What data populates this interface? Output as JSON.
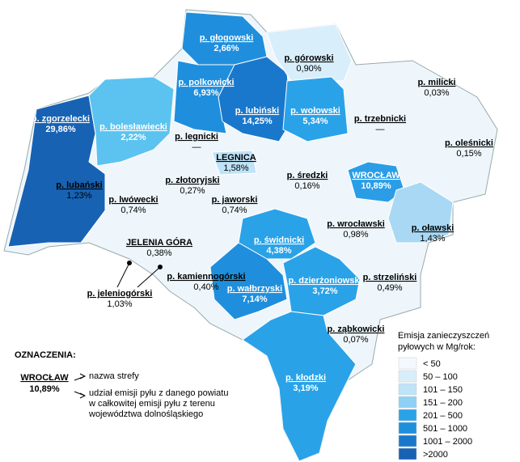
{
  "map": {
    "regions": [
      {
        "name": "p. zgorzelecki",
        "share": "29,86%",
        "color": "#1762b3",
        "text_color": "#ffffff"
      },
      {
        "name": "p. bolesławiecki",
        "share": "2,22%",
        "color": "#5cc3f0",
        "text_color": "#ffffff"
      },
      {
        "name": "p. głogowski",
        "share": "2,66%",
        "color": "#1f8fdd",
        "text_color": "#ffffff"
      },
      {
        "name": "p. polkowicki",
        "share": "6,93%",
        "color": "#1f8fdd",
        "text_color": "#ffffff"
      },
      {
        "name": "p. lubiński",
        "share": "14,25%",
        "color": "#1a78cc",
        "text_color": "#ffffff"
      },
      {
        "name": "p. górowski",
        "share": "0,90%",
        "color": "#d9eefb",
        "text_color": "#000000"
      },
      {
        "name": "p. wołowski",
        "share": "5,34%",
        "color": "#2aa2e8",
        "text_color": "#ffffff"
      },
      {
        "name": "p. milicki",
        "share": "0,03%",
        "color": "#eef6fc",
        "text_color": "#000000"
      },
      {
        "name": "p. trzebnicki",
        "share": "—",
        "color": "#eef6fc",
        "text_color": "#000000"
      },
      {
        "name": "p. oleśnicki",
        "share": "0,15%",
        "color": "#eef6fc",
        "text_color": "#000000"
      },
      {
        "name": "p. legnicki",
        "share": "—",
        "color": "#eef6fc",
        "text_color": "#000000"
      },
      {
        "name": "LEGNICA",
        "share": "1,58%",
        "color": "#bfe3f7",
        "text_color": "#000000"
      },
      {
        "name": "p. lubański",
        "share": "1,23%",
        "color": "#eef6fc",
        "text_color": "#000000"
      },
      {
        "name": "p. złotoryjski",
        "share": "0,27%",
        "color": "#eef6fc",
        "text_color": "#000000"
      },
      {
        "name": "p. lwówecki",
        "share": "0,74%",
        "color": "#eef6fc",
        "text_color": "#000000"
      },
      {
        "name": "p. jaworski",
        "share": "0,74%",
        "color": "#eef6fc",
        "text_color": "#000000"
      },
      {
        "name": "p. średzki",
        "share": "0,16%",
        "color": "#eef6fc",
        "text_color": "#000000"
      },
      {
        "name": "WROCŁAW",
        "share": "10,89%",
        "color": "#2a9de6",
        "text_color": "#ffffff"
      },
      {
        "name": "p. wrocławski",
        "share": "0,98%",
        "color": "#eef6fc",
        "text_color": "#000000"
      },
      {
        "name": "p. oławski",
        "share": "1,43%",
        "color": "#a8d8f4",
        "text_color": "#000000"
      },
      {
        "name": "JELENIA GÓRA",
        "share": "0,38%",
        "color": "#eef6fc",
        "text_color": "#000000"
      },
      {
        "name": "p. świdnicki",
        "share": "4,38%",
        "color": "#2aa2e8",
        "text_color": "#ffffff"
      },
      {
        "name": "p. jeleniogórski",
        "share": "1,03%",
        "color": "#eef6fc",
        "text_color": "#000000"
      },
      {
        "name": "p. kamiennogórski",
        "share": "0,40%",
        "color": "#eef6fc",
        "text_color": "#000000"
      },
      {
        "name": "p. wałbrzyski",
        "share": "7,14%",
        "color": "#1f8fdd",
        "text_color": "#ffffff"
      },
      {
        "name": "p. dzierżoniowski",
        "share": "3,72%",
        "color": "#2aa2e8",
        "text_color": "#ffffff"
      },
      {
        "name": "p. strzeliński",
        "share": "0,49%",
        "color": "#eef6fc",
        "text_color": "#000000"
      },
      {
        "name": "p. ząbkowicki",
        "share": "0,07%",
        "color": "#eef6fc",
        "text_color": "#000000"
      },
      {
        "name": "p. kłodzki",
        "share": "3,19%",
        "color": "#2aa2e8",
        "text_color": "#ffffff"
      }
    ],
    "legend": {
      "title": [
        "Emisja zanieczyszczeń",
        "pyłowych w Mg/rok:"
      ],
      "items": [
        {
          "label": "< 50",
          "color": "#f4f9fe"
        },
        {
          "label": "50 – 100",
          "color": "#d9eefb"
        },
        {
          "label": "101 – 150",
          "color": "#bfe3f7"
        },
        {
          "label": "151 – 200",
          "color": "#8fd0f4"
        },
        {
          "label": "201 – 500",
          "color": "#2aa2e8"
        },
        {
          "label": "501 – 1000",
          "color": "#1f8fdd"
        },
        {
          "label": "1001 – 2000",
          "color": "#1a78cc"
        },
        {
          "label": ">2000",
          "color": "#1762b3"
        }
      ]
    },
    "key": {
      "title": "OZNACZENIA:",
      "example_name": "WROCŁAW",
      "example_share": "10,89%",
      "name_desc": "nazwa strefy",
      "share_desc": [
        "udział emisji pyłu z danego powiatu",
        "w całkowitej emisji pyłu z terenu",
        "województwa dolnośląskiego"
      ]
    }
  }
}
